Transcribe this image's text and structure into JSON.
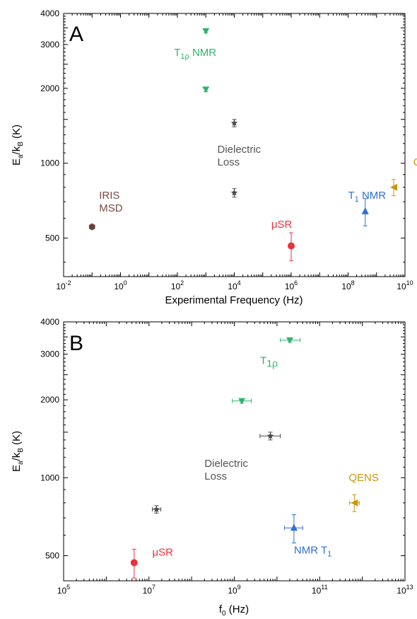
{
  "chart_data": [
    {
      "type": "scatter",
      "panel": "A",
      "xlabel": {
        "main": "Experimental Frequency (Hz)"
      },
      "ylabel": {
        "main": "E",
        "sub1": "a",
        "mid": "/k",
        "sub2": "B",
        "end": " (K)"
      },
      "x_scale": "log",
      "y_scale": "log",
      "xlim": [
        0.01,
        10000000000
      ],
      "ylim": [
        350,
        4000
      ],
      "x_ticks": [
        {
          "value": 0.01,
          "base": "10",
          "exp": "-2"
        },
        {
          "value": 1,
          "base": "10",
          "exp": "0"
        },
        {
          "value": 100,
          "base": "10",
          "exp": "2"
        },
        {
          "value": 10000,
          "base": "10",
          "exp": "4"
        },
        {
          "value": 1000000,
          "base": "10",
          "exp": "6"
        },
        {
          "value": 100000000,
          "base": "10",
          "exp": "8"
        },
        {
          "value": 10000000000,
          "base": "10",
          "exp": "10"
        }
      ],
      "y_ticks": [
        {
          "value": 500,
          "label": "500"
        },
        {
          "value": 1000,
          "label": "1000"
        },
        {
          "value": 2000,
          "label": "2000"
        },
        {
          "value": 3000,
          "label": "3000"
        },
        {
          "value": 4000,
          "label": "4000"
        }
      ],
      "points": [
        {
          "series": "IRIS MSD",
          "x": 0.1,
          "y": 555,
          "marker": "hexagon",
          "color": "#6b3f3a",
          "yerr": [
            0,
            0
          ],
          "xerr": [
            0,
            0
          ]
        },
        {
          "series": "T1rho NMR",
          "x": 1000,
          "y": 3400,
          "marker": "triangle-down",
          "color": "#2fb36a",
          "yerr": [
            60,
            60
          ],
          "xerr": [
            0,
            0
          ]
        },
        {
          "series": "T1rho NMR",
          "x": 1000,
          "y": 1980,
          "marker": "triangle-down",
          "color": "#2fb36a",
          "yerr": [
            40,
            40
          ],
          "xerr": [
            0,
            0
          ]
        },
        {
          "series": "Dielectric Loss",
          "x": 10000,
          "y": 1450,
          "marker": "star",
          "color": "#4a4a4a",
          "yerr": [
            50,
            50
          ],
          "xerr": [
            0,
            0
          ]
        },
        {
          "series": "Dielectric Loss",
          "x": 10000,
          "y": 760,
          "marker": "star",
          "color": "#4a4a4a",
          "yerr": [
            30,
            30
          ],
          "xerr": [
            0,
            0
          ]
        },
        {
          "series": "muSR",
          "x": 1000000,
          "y": 465,
          "marker": "circle",
          "color": "#e8323c",
          "yerr": [
            60,
            60
          ],
          "xerr": [
            0,
            0
          ]
        },
        {
          "series": "T1 NMR",
          "x": 400000000,
          "y": 640,
          "marker": "triangle-up",
          "color": "#2f6fd6",
          "yerr": [
            80,
            80
          ],
          "xerr": [
            0,
            0
          ]
        },
        {
          "series": "QENS",
          "x": 4000000000,
          "y": 800,
          "marker": "triangle-left",
          "color": "#c9960c",
          "yerr": [
            60,
            60
          ],
          "xerr": [
            0,
            0
          ]
        }
      ],
      "annotations": [
        {
          "key": "t1rho",
          "color": "#2fb36a",
          "x": 1000,
          "y": 2700,
          "dx": -45,
          "lines": [
            {
              "main": "T",
              "sub": "1ρ",
              "rest": " NMR"
            }
          ]
        },
        {
          "key": "dielectric",
          "color": "#555555",
          "x": 10000,
          "y": 1100,
          "dx": -24,
          "lines": [
            {
              "main": "Dielectric"
            },
            {
              "main": "Loss"
            }
          ]
        },
        {
          "key": "iris",
          "color": "#7a4b45",
          "x": 0.1,
          "y": 720,
          "dx": 10,
          "lines": [
            {
              "main": "IRIS"
            },
            {
              "main": "MSD"
            }
          ]
        },
        {
          "key": "qens",
          "color": "#c9960c",
          "x": 1000000000,
          "y": 980,
          "dx": 52,
          "lines": [
            {
              "main": "QENS"
            }
          ]
        },
        {
          "key": "t1nmr",
          "color": "#2f6fd6",
          "x": 100000000,
          "y": 720,
          "dx": 0,
          "lines": [
            {
              "main": "T",
              "sub": "1",
              "rest": " NMR"
            }
          ]
        },
        {
          "key": "musr",
          "color": "#e8323c",
          "x": 200000,
          "y": 550,
          "dx": 0,
          "lines": [
            {
              "main": "μSR"
            }
          ]
        }
      ]
    },
    {
      "type": "scatter",
      "panel": "B",
      "xlabel": {
        "main": "f",
        "sub1": "0",
        "end": " (Hz)"
      },
      "ylabel": {
        "main": "E",
        "sub1": "a",
        "mid": "/k",
        "sub2": "B",
        "end": " (K)"
      },
      "x_scale": "log",
      "y_scale": "log",
      "xlim": [
        100000,
        10000000000000
      ],
      "ylim": [
        400,
        4000
      ],
      "x_ticks": [
        {
          "value": 100000,
          "base": "10",
          "exp": "5"
        },
        {
          "value": 10000000,
          "base": "10",
          "exp": "7"
        },
        {
          "value": 1000000000,
          "base": "10",
          "exp": "9"
        },
        {
          "value": 100000000000,
          "base": "10",
          "exp": "11"
        },
        {
          "value": 10000000000000,
          "base": "10",
          "exp": "13"
        }
      ],
      "y_ticks": [
        {
          "value": 500,
          "label": "500"
        },
        {
          "value": 1000,
          "label": "1000"
        },
        {
          "value": 2000,
          "label": "2000"
        },
        {
          "value": 3000,
          "label": "3000"
        },
        {
          "value": 4000,
          "label": "4000"
        }
      ],
      "points": [
        {
          "series": "muSR",
          "x": 4500000,
          "y": 470,
          "marker": "circle",
          "color": "#e8323c",
          "yerr": [
            60,
            60
          ],
          "xerr": [
            0,
            0
          ]
        },
        {
          "series": "Dielectric Loss",
          "x": 15000000,
          "y": 755,
          "marker": "star",
          "color": "#4a4a4a",
          "yerr": [
            25,
            25
          ],
          "xerr": [
            3000000,
            4000000
          ]
        },
        {
          "series": "T1rho NMR",
          "x": 20000000000,
          "y": 3400,
          "marker": "triangle-down",
          "color": "#2fb36a",
          "yerr": [
            60,
            60
          ],
          "xerr": [
            8000000000,
            15000000000
          ]
        },
        {
          "series": "T1rho NMR",
          "x": 1500000000,
          "y": 1980,
          "marker": "triangle-down",
          "color": "#2fb36a",
          "yerr": [
            40,
            40
          ],
          "xerr": [
            600000000,
            1000000000
          ]
        },
        {
          "series": "Dielectric Loss",
          "x": 7000000000,
          "y": 1450,
          "marker": "star",
          "color": "#4a4a4a",
          "yerr": [
            50,
            50
          ],
          "xerr": [
            3000000000,
            5000000000
          ]
        },
        {
          "series": "T1 NMR",
          "x": 25000000000,
          "y": 640,
          "marker": "triangle-up",
          "color": "#2f6fd6",
          "yerr": [
            80,
            80
          ],
          "xerr": [
            10000000000,
            15000000000
          ]
        },
        {
          "series": "QENS",
          "x": 650000000000,
          "y": 800,
          "marker": "triangle-left",
          "color": "#c9960c",
          "yerr": [
            60,
            60
          ],
          "xerr": [
            150000000000,
            200000000000
          ]
        }
      ],
      "annotations": [
        {
          "key": "t1rho",
          "color": "#2fb36a",
          "x": 20000000000,
          "y": 2750,
          "dx": -42,
          "big": true,
          "lines": [
            {
              "main": "T",
              "sub": "1ρ"
            }
          ]
        },
        {
          "key": "dielectric",
          "color": "#555555",
          "x": 200000000,
          "y": 1100,
          "dx": 0,
          "lines": [
            {
              "main": "Dielectric"
            },
            {
              "main": "Loss"
            }
          ]
        },
        {
          "key": "qens",
          "color": "#c9960c",
          "x": 650000000000,
          "y": 970,
          "dx": -8,
          "lines": [
            {
              "main": "QENS"
            }
          ]
        },
        {
          "key": "nmrt1",
          "color": "#2f6fd6",
          "x": 25000000000,
          "y": 510,
          "dx": 0,
          "lines": [
            {
              "main": "NMR T",
              "sub": "1"
            }
          ]
        },
        {
          "key": "musr",
          "color": "#e8323c",
          "x": 12000000,
          "y": 500,
          "dx": 0,
          "lines": [
            {
              "main": "μSR"
            }
          ]
        }
      ]
    }
  ]
}
